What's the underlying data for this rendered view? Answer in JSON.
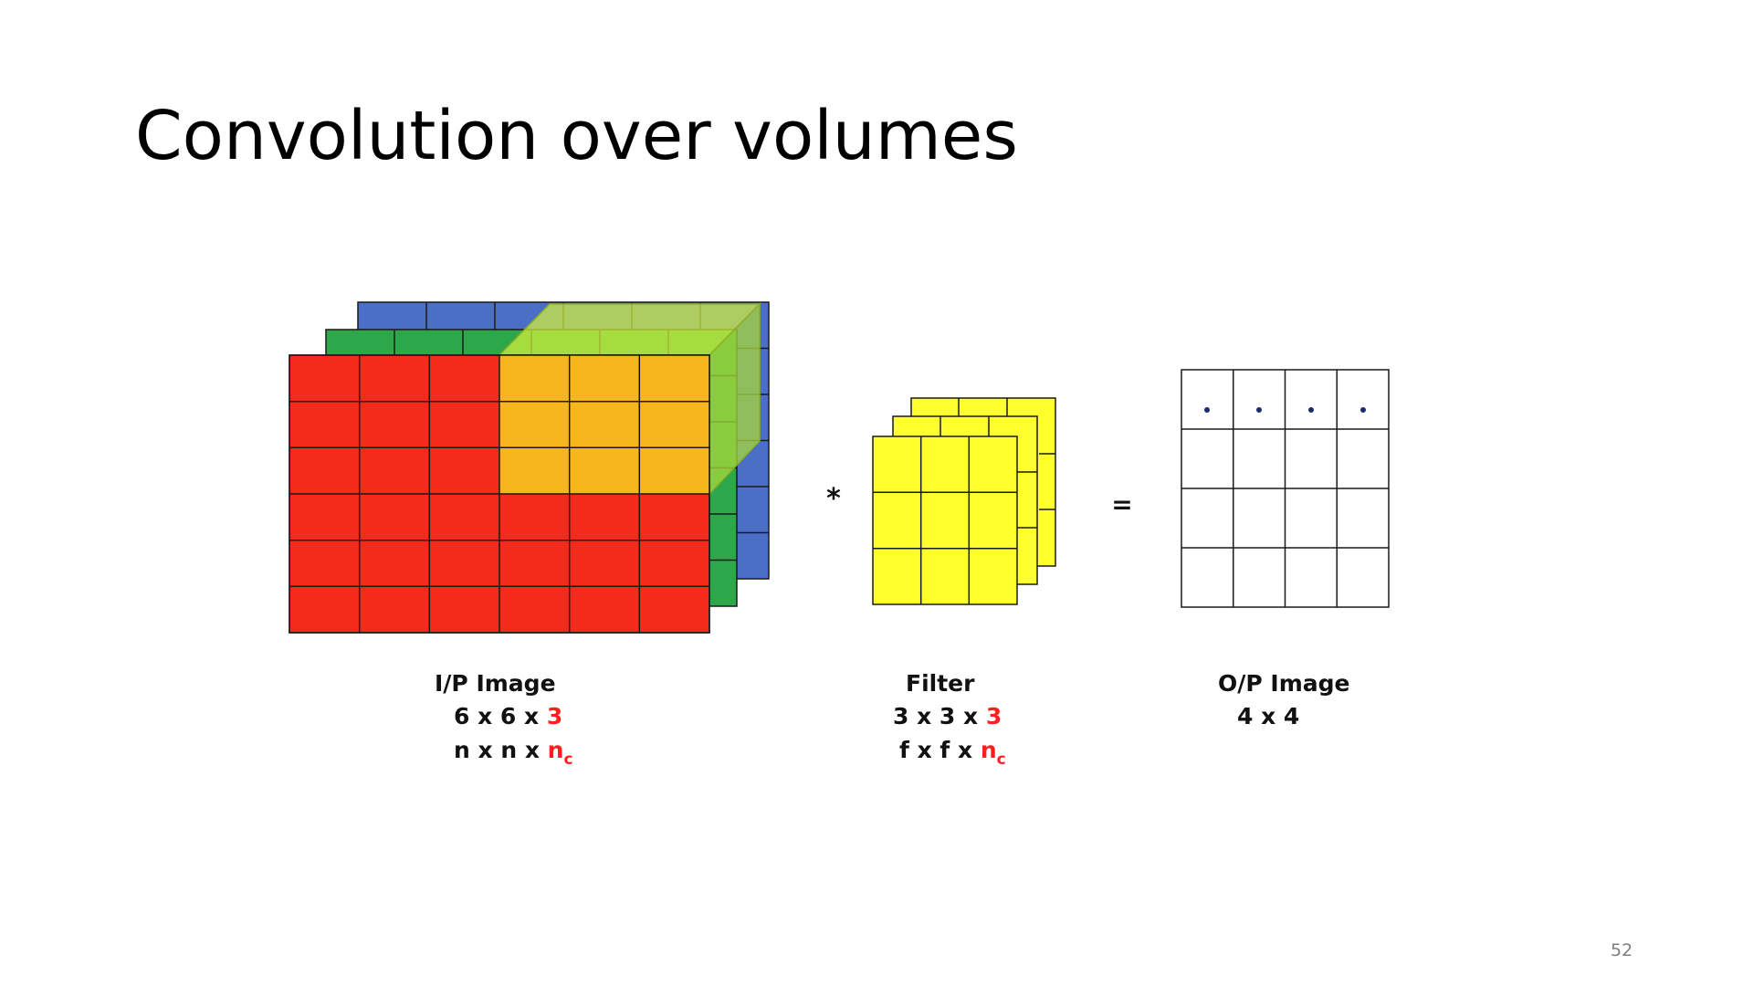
{
  "slide": {
    "title": "Convolution over volumes",
    "page_number": "52"
  },
  "operators": {
    "convolve": "*",
    "equals": "="
  },
  "input_image": {
    "label": "I/P Image",
    "dims_numeric_prefix": "6 x 6 x ",
    "dims_numeric_channels": "3",
    "dims_symbolic_prefix": "n x n x ",
    "dims_symbolic_channels": "n",
    "dims_symbolic_channels_sub": "c",
    "grid_rows": 6,
    "grid_cols": 6,
    "channel_colors": [
      "#f42a1a",
      "#2ca84a",
      "#4a6fc4"
    ]
  },
  "filter": {
    "label": "Filter",
    "dims_numeric_prefix": "3 x 3 x ",
    "dims_numeric_channels": "3",
    "dims_symbolic_prefix": "f x f x ",
    "dims_symbolic_channels": "n",
    "dims_symbolic_channels_sub": "c",
    "grid_rows": 3,
    "grid_cols": 3,
    "color": "#ffff2e"
  },
  "output_image": {
    "label": "O/P Image",
    "dims": "4 x 4",
    "grid_rows": 4,
    "grid_cols": 4,
    "first_row_dots": 4
  },
  "colors": {
    "highlight_front": "#f7b51e",
    "highlight_side": "#b8e53a",
    "dot": "#1a2a6e",
    "accent_red": "#ff1f1f"
  }
}
